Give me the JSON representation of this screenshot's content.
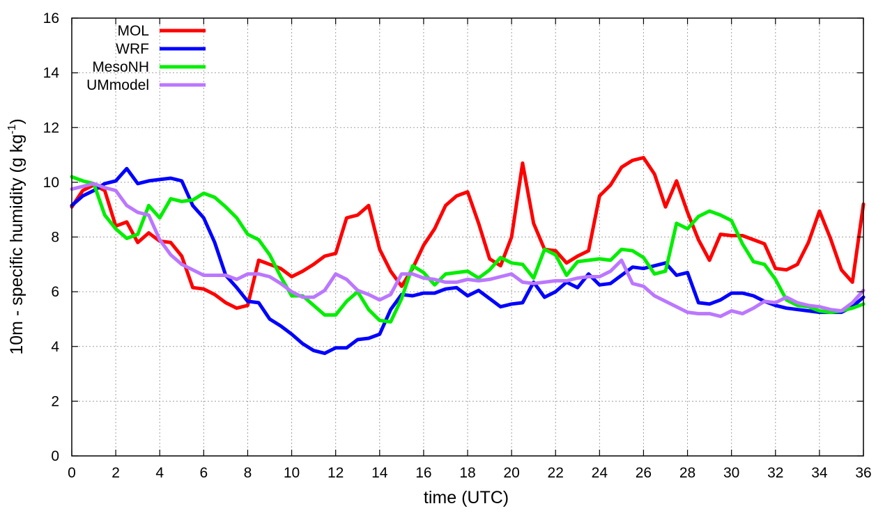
{
  "chart_data": {
    "type": "line",
    "xlabel": "time (UTC)",
    "ylabel": "10m - specific humidity (g kg",
    "ylabel_sup": "-1",
    "ylabel_end": ")",
    "xlim": [
      0,
      36
    ],
    "ylim": [
      0,
      16
    ],
    "xticks": [
      0,
      2,
      4,
      6,
      8,
      10,
      12,
      14,
      16,
      18,
      20,
      22,
      24,
      26,
      28,
      30,
      32,
      34,
      36
    ],
    "yticks": [
      0,
      2,
      4,
      6,
      8,
      10,
      12,
      14,
      16
    ],
    "grid": true,
    "legend_position": "top-left",
    "series": [
      {
        "name": "MOL",
        "color": "#ff0000",
        "x": [
          0,
          0.5,
          1,
          1.5,
          2,
          2.5,
          3,
          3.5,
          4,
          4.5,
          5,
          5.5,
          6,
          6.5,
          7,
          7.5,
          8,
          8.5,
          9,
          9.5,
          10,
          10.5,
          11,
          11.5,
          12,
          12.5,
          13,
          13.5,
          14,
          14.5,
          15,
          15.5,
          16,
          16.5,
          17,
          17.5,
          18,
          18.5,
          19,
          19.5,
          20,
          20.5,
          21,
          21.5,
          22,
          22.5,
          23,
          23.5,
          24,
          24.5,
          25,
          25.5,
          26,
          26.5,
          27,
          27.5,
          28,
          28.5,
          29,
          29.5,
          30,
          30.5,
          31,
          31.5,
          32,
          32.5,
          33,
          33.5,
          34,
          34.5,
          35,
          35.5,
          36
        ],
        "y": [
          9.1,
          9.7,
          9.9,
          9.7,
          8.4,
          8.55,
          7.8,
          8.15,
          7.85,
          7.8,
          7.3,
          6.15,
          6.1,
          5.9,
          5.6,
          5.4,
          5.5,
          7.15,
          7.0,
          6.85,
          6.55,
          6.75,
          7.0,
          7.3,
          7.4,
          8.7,
          8.8,
          9.15,
          7.55,
          6.75,
          6.2,
          6.85,
          7.7,
          8.3,
          9.15,
          9.5,
          9.65,
          8.5,
          7.2,
          6.95,
          8.0,
          10.7,
          8.5,
          7.55,
          7.5,
          7.05,
          7.3,
          7.5,
          9.5,
          9.9,
          10.55,
          10.8,
          10.9,
          10.3,
          9.1,
          10.05,
          8.9,
          7.9,
          7.15,
          8.1,
          8.05,
          8.05,
          7.9,
          7.75,
          6.85,
          6.8,
          7.0,
          7.8,
          8.95,
          7.95,
          6.8,
          6.35,
          9.2
        ]
      },
      {
        "name": "WRF",
        "color": "#0000ff",
        "x": [
          0,
          0.5,
          1,
          1.5,
          2,
          2.5,
          3,
          3.5,
          4,
          4.5,
          5,
          5.5,
          6,
          6.5,
          7,
          7.5,
          8,
          8.5,
          9,
          9.5,
          10,
          10.5,
          11,
          11.5,
          12,
          12.5,
          13,
          13.5,
          14,
          14.5,
          15,
          15.5,
          16,
          16.5,
          17,
          17.5,
          18,
          18.5,
          19,
          19.5,
          20,
          20.5,
          21,
          21.5,
          22,
          22.5,
          23,
          23.5,
          24,
          24.5,
          25,
          25.5,
          26,
          26.5,
          27,
          27.5,
          28,
          28.5,
          29,
          29.5,
          30,
          30.5,
          31,
          31.5,
          32,
          32.5,
          33,
          33.5,
          34,
          34.5,
          35,
          35.5,
          36
        ],
        "y": [
          9.15,
          9.5,
          9.7,
          9.95,
          10.05,
          10.5,
          9.95,
          10.05,
          10.1,
          10.15,
          10.05,
          9.15,
          8.7,
          7.8,
          6.6,
          6.15,
          5.65,
          5.6,
          5.0,
          4.75,
          4.45,
          4.1,
          3.85,
          3.75,
          3.95,
          3.95,
          4.25,
          4.3,
          4.45,
          5.35,
          5.9,
          5.85,
          5.95,
          5.95,
          6.1,
          6.15,
          5.85,
          6.05,
          5.75,
          5.45,
          5.55,
          5.6,
          6.35,
          5.8,
          6.0,
          6.35,
          6.15,
          6.65,
          6.25,
          6.3,
          6.6,
          6.9,
          6.85,
          6.95,
          7.05,
          6.6,
          6.7,
          5.6,
          5.55,
          5.7,
          5.95,
          5.95,
          5.85,
          5.65,
          5.5,
          5.4,
          5.35,
          5.3,
          5.25,
          5.25,
          5.25,
          5.45,
          5.8
        ]
      },
      {
        "name": "MesoNH",
        "color": "#00ee00",
        "x": [
          0,
          0.5,
          1,
          1.5,
          2,
          2.5,
          3,
          3.5,
          4,
          4.5,
          5,
          5.5,
          6,
          6.5,
          7,
          7.5,
          8,
          8.5,
          9,
          9.5,
          10,
          10.5,
          11,
          11.5,
          12,
          12.5,
          13,
          13.5,
          14,
          14.5,
          15,
          15.5,
          16,
          16.5,
          17,
          17.5,
          18,
          18.5,
          19,
          19.5,
          20,
          20.5,
          21,
          21.5,
          22,
          22.5,
          23,
          23.5,
          24,
          24.5,
          25,
          25.5,
          26,
          26.5,
          27,
          27.5,
          28,
          28.5,
          29,
          29.5,
          30,
          30.5,
          31,
          31.5,
          32,
          32.5,
          33,
          33.5,
          34,
          34.5,
          35,
          35.5,
          36
        ],
        "y": [
          10.2,
          10.05,
          9.95,
          8.8,
          8.3,
          7.95,
          8.1,
          9.15,
          8.7,
          9.4,
          9.3,
          9.35,
          9.6,
          9.45,
          9.1,
          8.7,
          8.1,
          7.9,
          7.35,
          6.55,
          5.85,
          5.85,
          5.5,
          5.15,
          5.15,
          5.65,
          6.0,
          5.35,
          4.95,
          4.9,
          5.75,
          6.95,
          6.7,
          6.25,
          6.65,
          6.7,
          6.75,
          6.5,
          6.8,
          7.25,
          7.05,
          7.0,
          6.5,
          7.55,
          7.35,
          6.6,
          7.1,
          7.15,
          7.2,
          7.15,
          7.55,
          7.5,
          7.25,
          6.65,
          6.75,
          8.5,
          8.3,
          8.75,
          8.95,
          8.8,
          8.6,
          7.75,
          7.1,
          7.0,
          6.45,
          5.7,
          5.5,
          5.45,
          5.3,
          5.25,
          5.3,
          5.4,
          5.55
        ]
      },
      {
        "name": "UMmodel",
        "color": "#bb77ff",
        "x": [
          0,
          0.5,
          1,
          1.5,
          2,
          2.5,
          3,
          3.5,
          4,
          4.5,
          5,
          5.5,
          6,
          6.5,
          7,
          7.5,
          8,
          8.5,
          9,
          9.5,
          10,
          10.5,
          11,
          11.5,
          12,
          12.5,
          13,
          13.5,
          14,
          14.5,
          15,
          15.5,
          16,
          16.5,
          17,
          17.5,
          18,
          18.5,
          19,
          19.5,
          20,
          20.5,
          21,
          21.5,
          22,
          22.5,
          23,
          23.5,
          24,
          24.5,
          25,
          25.5,
          26,
          26.5,
          27,
          27.5,
          28,
          28.5,
          29,
          29.5,
          30,
          30.5,
          31,
          31.5,
          32,
          32.5,
          33,
          33.5,
          34,
          34.5,
          35,
          35.5,
          36
        ],
        "y": [
          9.75,
          9.85,
          9.95,
          9.8,
          9.7,
          9.15,
          8.9,
          8.8,
          7.9,
          7.35,
          7.0,
          6.8,
          6.6,
          6.6,
          6.6,
          6.45,
          6.65,
          6.65,
          6.55,
          6.3,
          6.0,
          5.8,
          5.8,
          6.05,
          6.65,
          6.45,
          6.05,
          5.9,
          5.7,
          5.9,
          6.65,
          6.65,
          6.5,
          6.45,
          6.35,
          6.35,
          6.45,
          6.4,
          6.45,
          6.55,
          6.65,
          6.35,
          6.3,
          6.35,
          6.4,
          6.4,
          6.5,
          6.55,
          6.55,
          6.75,
          7.15,
          6.3,
          6.2,
          5.85,
          5.65,
          5.45,
          5.25,
          5.2,
          5.2,
          5.1,
          5.3,
          5.2,
          5.4,
          5.65,
          5.6,
          5.8,
          5.6,
          5.5,
          5.45,
          5.35,
          5.3,
          5.6,
          6.05
        ]
      }
    ]
  }
}
